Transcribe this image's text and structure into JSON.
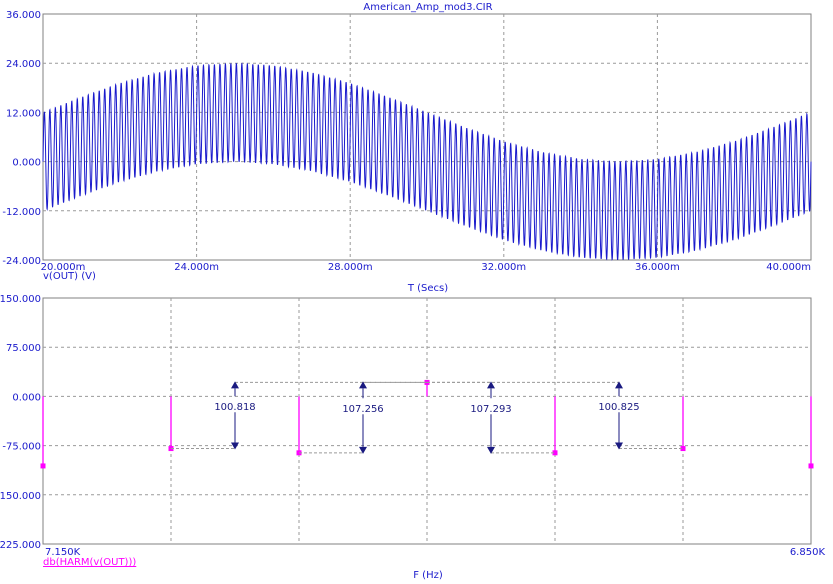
{
  "window": {
    "title": "American_Amp_mod3.CIR"
  },
  "chart_data": [
    {
      "type": "line",
      "title": "American_Amp_mod3.CIR",
      "xlabel": "T (Secs)",
      "xlim": [
        0.02,
        0.04
      ],
      "ylim": [
        -24,
        36
      ],
      "grid": true,
      "x_ticks": [
        "20.000m",
        "24.000m",
        "28.000m",
        "32.000m",
        "36.000m",
        "40.000m"
      ],
      "x_tick_values": [
        0.02,
        0.024,
        0.028,
        0.032,
        0.036,
        0.04
      ],
      "y_ticks": [
        "36.000",
        "24.000",
        "12.000",
        "0.000",
        "-12.000",
        "-24.000"
      ],
      "y_tick_values": [
        36,
        24,
        12,
        0,
        -12,
        -24
      ],
      "series": [
        {
          "name": "v(OUT) (V)",
          "color": "#1a1acc",
          "carrier_frequency_hz": 7000,
          "envelope": {
            "x": [
              0.02,
              0.021,
              0.022,
              0.023,
              0.024,
              0.025,
              0.026,
              0.027,
              0.028,
              0.029,
              0.03,
              0.031,
              0.032,
              0.033,
              0.034,
              0.035,
              0.036,
              0.037,
              0.038,
              0.039,
              0.04
            ],
            "upper": [
              12.0,
              15.7,
              19.1,
              21.7,
              23.4,
              24.0,
              23.4,
              21.7,
              19.1,
              15.7,
              12.0,
              8.3,
              4.9,
              2.3,
              0.6,
              0.0,
              0.6,
              2.3,
              4.9,
              8.3,
              12.0
            ],
            "lower": [
              -12.0,
              -8.3,
              -4.9,
              -2.3,
              -0.6,
              0.0,
              -0.6,
              -2.3,
              -4.9,
              -8.3,
              -12.0,
              -15.7,
              -19.1,
              -21.7,
              -23.4,
              -24.0,
              -23.4,
              -21.7,
              -19.1,
              -15.7,
              -12.0
            ]
          }
        }
      ]
    },
    {
      "type": "bar",
      "xlabel": "F (Hz)",
      "xlim": [
        7150,
        6850
      ],
      "ylim": [
        -225,
        150
      ],
      "grid": true,
      "x_ticks": [
        "7.150K",
        "6.850K"
      ],
      "x_tick_values": [
        7150,
        6850
      ],
      "y_ticks": [
        "150.000",
        "75.000",
        "0.000",
        "-75.000",
        "-150.000",
        "-225.000"
      ],
      "y_tick_values": [
        150,
        75,
        0,
        -75,
        -150,
        -225
      ],
      "series": [
        {
          "name": "db(HARM(v(OUT)))",
          "color": "#ff00ff",
          "x": [
            7150,
            7100,
            7050,
            7000,
            6950,
            6900,
            6850
          ],
          "values": [
            -106.0,
            -79.5,
            -86.0,
            21.3,
            -86.0,
            -79.5,
            -106.0
          ]
        }
      ],
      "annotations": [
        {
          "label": "100.818",
          "x": 7075,
          "from": 21.3,
          "to": -79.5,
          "text_y": -15
        },
        {
          "label": "107.256",
          "x": 7025,
          "from": 21.3,
          "to": -86.0,
          "text_y": -18
        },
        {
          "label": "107.293",
          "x": 6975,
          "from": 21.3,
          "to": -86.0,
          "text_y": -18
        },
        {
          "label": "100.825",
          "x": 6925,
          "from": 21.3,
          "to": -79.5,
          "text_y": -15
        }
      ]
    }
  ]
}
